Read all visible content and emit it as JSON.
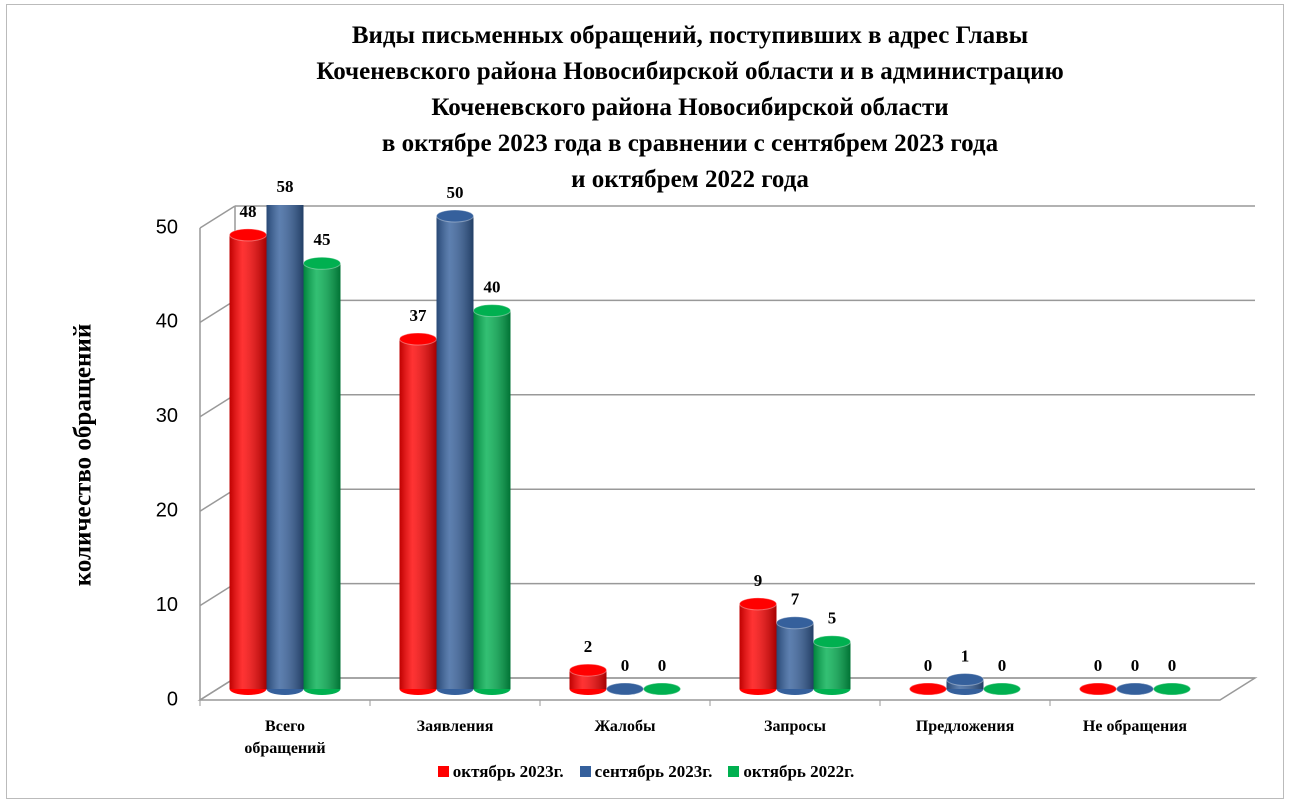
{
  "chart_data": {
    "type": "bar3d",
    "title": "Виды письменных обращений, поступивших в адрес Главы\nКоченевского района Новосибирской области и в администрацию\nКоченевского района Новосибирской области\nв октябре 2023 года в сравнении с сентябрем 2023 года\nи октябрем 2022 года",
    "y_label": "количество обращений",
    "categories": [
      "Всего обращений",
      "Заявления",
      "Жалобы",
      "Запросы",
      "Предложения",
      "Не обращения"
    ],
    "series": [
      {
        "name": "октябрь  2023г.",
        "color": "#ff0000",
        "values": [
          48,
          37,
          2,
          9,
          0,
          0
        ]
      },
      {
        "name": "сентябрь  2023г.",
        "color": "#35609c",
        "values": [
          58,
          50,
          0,
          7,
          1,
          0
        ]
      },
      {
        "name": "октябрь 2022г.",
        "color": "#00b050",
        "values": [
          45,
          40,
          0,
          5,
          0,
          0
        ]
      }
    ],
    "ylim": [
      0,
      50
    ],
    "yticks": [
      0,
      10,
      20,
      30,
      40,
      50
    ],
    "grid": true
  }
}
